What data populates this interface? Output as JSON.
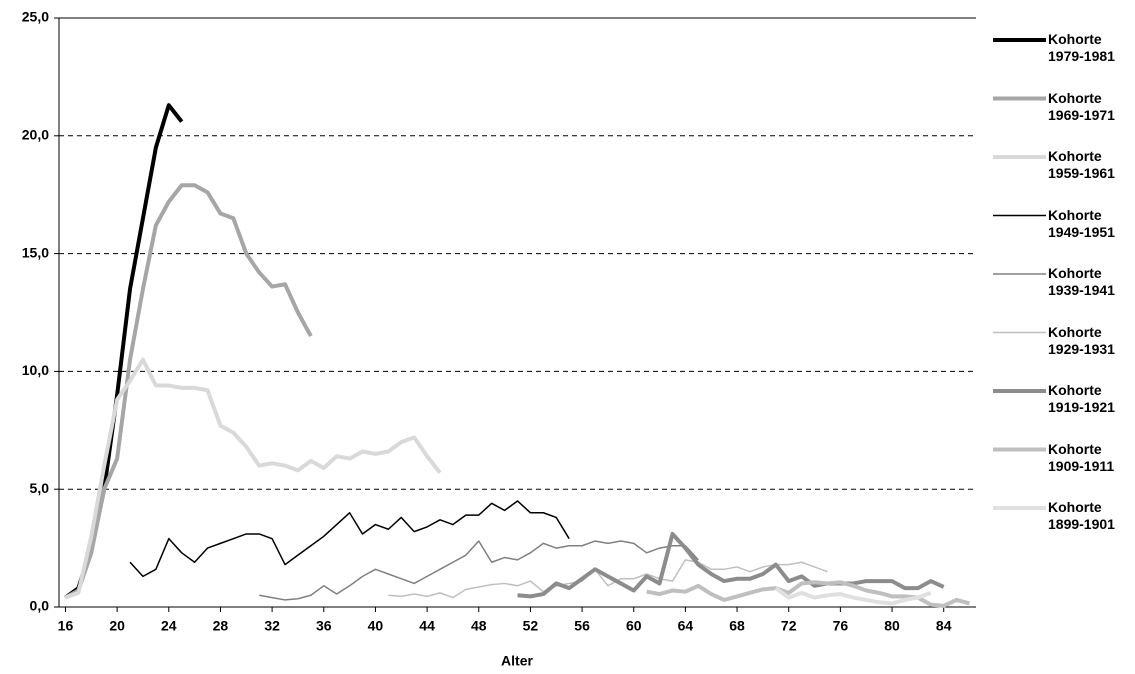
{
  "chart_data": {
    "type": "line",
    "x_label": "Alter",
    "xlim": [
      15.5,
      86.5
    ],
    "xticks": [
      16,
      20,
      24,
      28,
      32,
      36,
      40,
      44,
      48,
      52,
      56,
      60,
      64,
      68,
      72,
      76,
      80,
      84
    ],
    "ylim": [
      0,
      25
    ],
    "yticks": [
      {
        "value": 0,
        "label": "0,0"
      },
      {
        "value": 5,
        "label": "5,0"
      },
      {
        "value": 10,
        "label": "10,0"
      },
      {
        "value": 15,
        "label": "15,0"
      },
      {
        "value": 20,
        "label": "20,0"
      },
      {
        "value": 25,
        "label": "25,0"
      }
    ],
    "grid": true,
    "legend": "right",
    "series": [
      {
        "name": "Kohorte 1979-1981",
        "color": "#000000",
        "width": 4,
        "x": [
          16,
          17,
          18,
          19,
          20,
          21,
          22,
          23,
          24,
          25
        ],
        "values": [
          0.4,
          0.8,
          2.5,
          5,
          9,
          13.5,
          16.5,
          19.5,
          21.3,
          20.6
        ]
      },
      {
        "name": "Kohorte 1969-1971",
        "color": "#a6a6a6",
        "width": 4,
        "x": [
          16,
          17,
          18,
          19,
          20,
          21,
          22,
          23,
          24,
          25,
          26,
          27,
          28,
          29,
          30,
          31,
          32,
          33,
          34,
          35
        ],
        "values": [
          0.4,
          0.7,
          2.3,
          5,
          6.3,
          10.5,
          13.5,
          16.2,
          17.2,
          17.9,
          17.9,
          17.6,
          16.7,
          16.5,
          15,
          14.2,
          13.6,
          13.7,
          12.5,
          11.5
        ]
      },
      {
        "name": "Kohorte 1959-1961",
        "color": "#d9d9d9",
        "width": 4,
        "x": [
          16,
          17,
          18,
          19,
          20,
          21,
          22,
          23,
          24,
          25,
          26,
          27,
          28,
          29,
          30,
          31,
          32,
          33,
          34,
          35,
          36,
          37,
          38,
          39,
          40,
          41,
          42,
          43,
          44,
          45
        ],
        "values": [
          0.4,
          0.6,
          3,
          6,
          8.8,
          9.6,
          10.5,
          9.4,
          9.4,
          9.3,
          9.3,
          9.2,
          7.7,
          7.4,
          6.8,
          6.0,
          6.1,
          6.0,
          5.8,
          6.2,
          5.9,
          6.4,
          6.3,
          6.6,
          6.5,
          6.6,
          7.0,
          7.2,
          6.4,
          5.7
        ]
      },
      {
        "name": "Kohorte 1949-1951",
        "color": "#000000",
        "width": 1.5,
        "x": [
          21,
          22,
          23,
          24,
          25,
          26,
          27,
          28,
          29,
          30,
          31,
          32,
          33,
          34,
          35,
          36,
          37,
          38,
          39,
          40,
          41,
          42,
          43,
          44,
          45,
          46,
          47,
          48,
          49,
          50,
          51,
          52,
          53,
          54,
          55
        ],
        "values": [
          1.9,
          1.3,
          1.6,
          2.9,
          2.3,
          1.9,
          2.5,
          2.7,
          2.9,
          3.1,
          3.1,
          2.9,
          1.8,
          2.2,
          2.6,
          3.0,
          3.5,
          4.0,
          3.1,
          3.5,
          3.3,
          3.8,
          3.2,
          3.4,
          3.7,
          3.5,
          3.9,
          3.9,
          4.4,
          4.1,
          4.5,
          4.0,
          4.0,
          3.8,
          2.9
        ]
      },
      {
        "name": "Kohorte 1939-1941",
        "color": "#808080",
        "width": 1.5,
        "x": [
          31,
          32,
          33,
          34,
          35,
          36,
          37,
          38,
          39,
          40,
          41,
          42,
          43,
          44,
          45,
          46,
          47,
          48,
          49,
          50,
          51,
          52,
          53,
          54,
          55,
          56,
          57,
          58,
          59,
          60,
          61,
          62,
          63,
          64,
          65
        ],
        "values": [
          0.5,
          0.4,
          0.3,
          0.35,
          0.5,
          0.9,
          0.55,
          0.9,
          1.3,
          1.6,
          1.4,
          1.2,
          1.0,
          1.3,
          1.6,
          1.9,
          2.2,
          2.8,
          1.9,
          2.1,
          2.0,
          2.3,
          2.7,
          2.5,
          2.6,
          2.6,
          2.8,
          2.7,
          2.8,
          2.7,
          2.3,
          2.5,
          2.6,
          2.6,
          2.0
        ]
      },
      {
        "name": "Kohorte 1929-1931",
        "color": "#bfbfbf",
        "width": 1.5,
        "x": [
          41,
          42,
          43,
          44,
          45,
          46,
          47,
          48,
          49,
          50,
          51,
          52,
          53,
          54,
          55,
          56,
          57,
          58,
          59,
          60,
          61,
          62,
          63,
          64,
          65,
          66,
          67,
          68,
          69,
          70,
          71,
          72,
          73,
          74,
          75
        ],
        "values": [
          0.5,
          0.45,
          0.55,
          0.45,
          0.6,
          0.4,
          0.75,
          0.85,
          0.95,
          1.0,
          0.9,
          1.1,
          0.65,
          0.9,
          1.0,
          1.1,
          1.6,
          0.9,
          1.2,
          1.2,
          1.4,
          1.2,
          1.1,
          2.0,
          1.9,
          1.6,
          1.6,
          1.7,
          1.5,
          1.7,
          1.8,
          1.8,
          1.9,
          1.7,
          1.5
        ]
      },
      {
        "name": "Kohorte 1919-1921",
        "color": "#8c8c8c",
        "width": 4,
        "x": [
          51,
          52,
          53,
          54,
          55,
          56,
          57,
          58,
          59,
          60,
          61,
          62,
          63,
          64,
          65,
          66,
          67,
          68,
          69,
          70,
          71,
          72,
          73,
          74,
          75,
          76,
          77,
          78,
          79,
          80,
          81,
          82,
          83,
          84
        ],
        "values": [
          0.5,
          0.45,
          0.55,
          1.0,
          0.8,
          1.2,
          1.6,
          1.3,
          1.0,
          0.7,
          1.3,
          1.0,
          3.1,
          2.5,
          1.8,
          1.4,
          1.1,
          1.2,
          1.2,
          1.4,
          1.8,
          1.1,
          1.3,
          0.9,
          1.0,
          1.0,
          1.0,
          1.1,
          1.1,
          1.1,
          0.8,
          0.8,
          1.1,
          0.85
        ]
      },
      {
        "name": "Kohorte 1909-1911",
        "color": "#bfbfbf",
        "width": 4,
        "x": [
          61,
          62,
          63,
          64,
          65,
          66,
          67,
          68,
          69,
          70,
          71,
          72,
          73,
          74,
          75,
          76,
          77,
          78,
          79,
          80,
          81,
          82,
          83,
          84,
          85,
          86
        ],
        "values": [
          0.65,
          0.55,
          0.7,
          0.65,
          0.9,
          0.55,
          0.3,
          0.45,
          0.6,
          0.75,
          0.8,
          0.6,
          1.0,
          1.05,
          1.0,
          1.05,
          0.9,
          0.7,
          0.6,
          0.45,
          0.45,
          0.4,
          0.1,
          0.05,
          0.3,
          0.15
        ]
      },
      {
        "name": "Kohorte 1899-1901",
        "color": "#e0e0e0",
        "width": 4,
        "x": [
          71,
          72,
          73,
          74,
          75,
          76,
          77,
          78,
          79,
          80,
          81,
          82,
          83
        ],
        "values": [
          0.8,
          0.4,
          0.6,
          0.4,
          0.5,
          0.55,
          0.4,
          0.3,
          0.2,
          0.15,
          0.3,
          0.4,
          0.6
        ]
      }
    ]
  }
}
